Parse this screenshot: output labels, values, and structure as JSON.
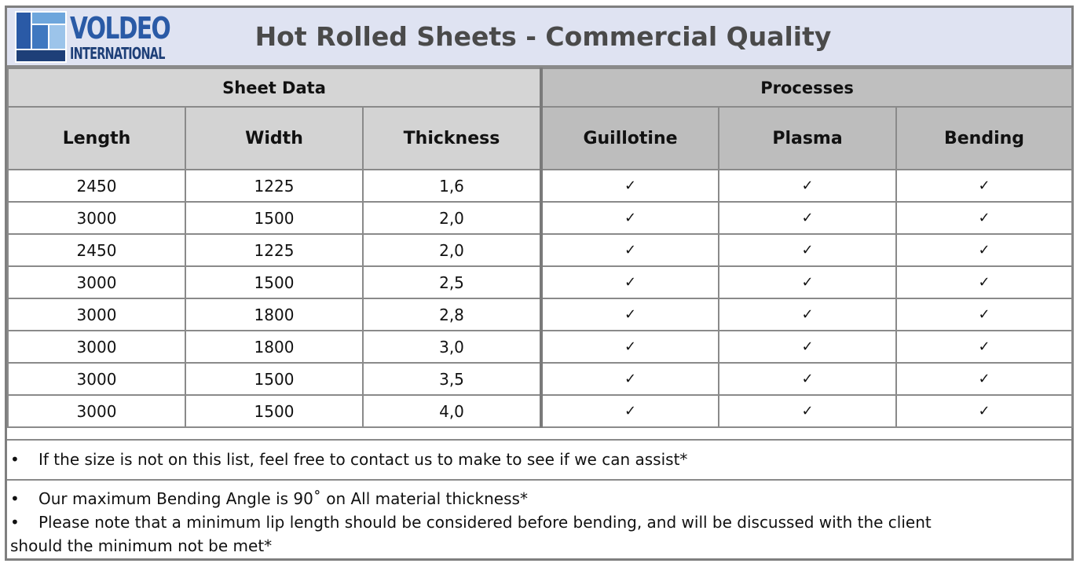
{
  "header": {
    "logo_top": "VOLDEO",
    "logo_bottom": "INTERNATIONAL",
    "title": "Hot Rolled Sheets - Commercial Quality"
  },
  "groups": {
    "sheet_data": "Sheet Data",
    "processes": "Processes"
  },
  "columns": [
    "Length",
    "Width",
    "Thickness",
    "Guillotine",
    "Plasma",
    "Bending"
  ],
  "rows": [
    [
      "2450",
      "1225",
      "1,6",
      "✓",
      "✓",
      "✓"
    ],
    [
      "3000",
      "1500",
      "2,0",
      "✓",
      "✓",
      "✓"
    ],
    [
      "2450",
      "1225",
      "2,0",
      "✓",
      "✓",
      "✓"
    ],
    [
      "3000",
      "1500",
      "2,5",
      "✓",
      "✓",
      "✓"
    ],
    [
      "3000",
      "1800",
      "2,8",
      "✓",
      "✓",
      "✓"
    ],
    [
      "3000",
      "1800",
      "3,0",
      "✓",
      "✓",
      "✓"
    ],
    [
      "3000",
      "1500",
      "3,5",
      "✓",
      "✓",
      "✓"
    ],
    [
      "3000",
      "1500",
      "4,0",
      "✓",
      "✓",
      "✓"
    ]
  ],
  "notes": {
    "bullet": "•",
    "note1": "If the size is not on this list, feel free to contact us to make to see if we can assist*",
    "note2": "Our maximum Bending Angle is 90˚ on All material thickness*",
    "note3": "Please note that a minimum lip length should be considered before bending, and will be discussed with the client",
    "note3_cont": "should the minimum not be met*"
  },
  "colors": {
    "title_bg": "#dfe3f2",
    "brand_blue": "#2a5aa6",
    "header_gray": "#d3d3d3",
    "process_gray": "#bdbdbd"
  }
}
